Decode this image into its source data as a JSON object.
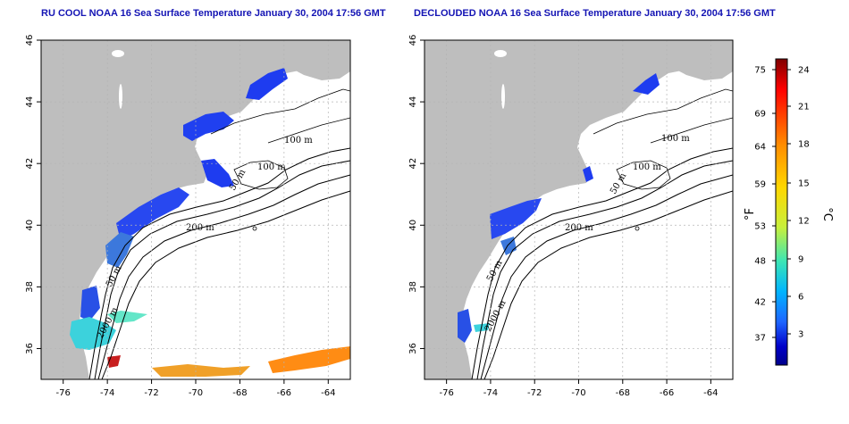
{
  "panels": [
    {
      "id": "left",
      "title": "RU COOL NOAA 16 Sea Surface Temperature January 30, 2004 17:56 GMT",
      "contour_labels": [
        "100 m",
        "100 m",
        "50 m",
        "200 m",
        "50 m",
        "2000 m"
      ]
    },
    {
      "id": "right",
      "title": "DECLOUDED NOAA 16 Sea Surface Temperature January 30, 2004 17:56 GMT",
      "contour_labels": [
        "100 m",
        "100 m",
        "50 m",
        "200 m",
        "50 m",
        "2000 m"
      ]
    }
  ],
  "x_ticks": [
    "-76",
    "-74",
    "-72",
    "-70",
    "-68",
    "-66",
    "-64"
  ],
  "y_ticks": [
    "36",
    "38",
    "40",
    "42",
    "44",
    "46"
  ],
  "colorbar": {
    "fahrenheit_label": "°F",
    "celsius_label": "°C",
    "fahrenheit_ticks": [
      "75",
      "69",
      "64",
      "59",
      "53",
      "48",
      "42",
      "37"
    ],
    "celsius_ticks": [
      "24",
      "21",
      "18",
      "15",
      "12",
      "9",
      "6",
      "3"
    ],
    "colors": [
      "#7f0000",
      "#ff0000",
      "#ff8c00",
      "#ffd700",
      "#c8f03c",
      "#3ce6b4",
      "#00b4ff",
      "#1e64ff",
      "#0000c8",
      "#00008c"
    ]
  },
  "colors": {
    "land": "#bebebe",
    "title": "#1414b4",
    "cold_water": "#1e3cf0",
    "cool_water": "#3cd2dc",
    "warm_water": "#ff8c14",
    "hot_water": "#c81e1e"
  }
}
